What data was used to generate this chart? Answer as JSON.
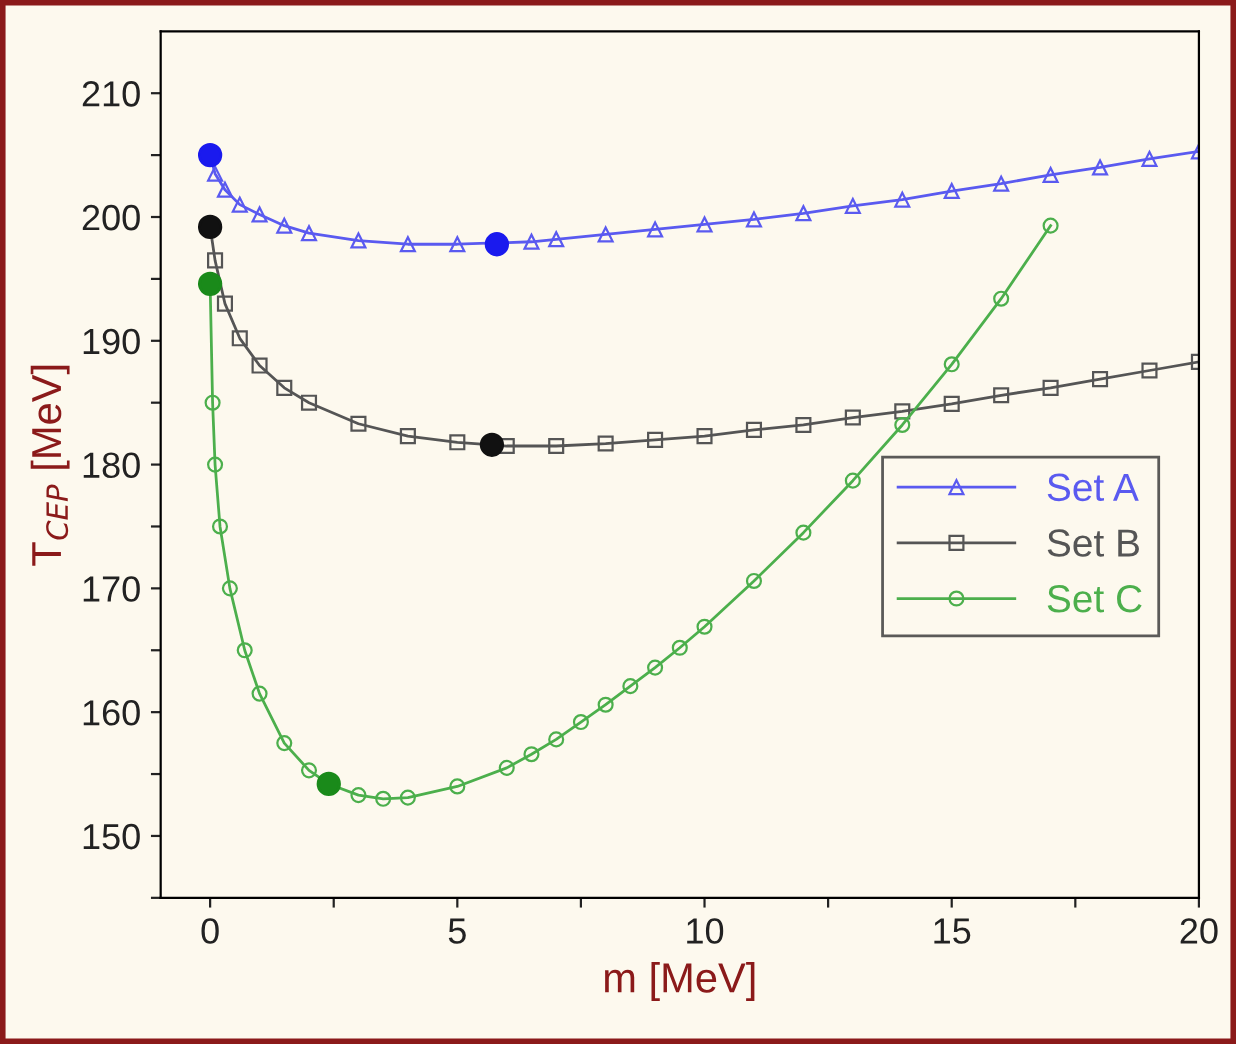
{
  "chart_data": {
    "type": "line",
    "xlabel": "m [MeV]",
    "ylabel": "T$_{CEP}$ [MeV]",
    "xlim": [
      -1,
      20
    ],
    "ylim": [
      145,
      215
    ],
    "xticks": [
      0,
      {
        "value": 2.5,
        "label": null
      },
      5,
      {
        "value": 7.5,
        "label": null
      },
      10,
      {
        "value": 12.5,
        "label": null
      },
      15,
      {
        "value": 17.5,
        "label": null
      },
      20
    ],
    "yticks": [
      {
        "value": 145,
        "label": null
      },
      150,
      {
        "value": 155,
        "label": null
      },
      160,
      {
        "value": 165,
        "label": null
      },
      170,
      {
        "value": 175,
        "label": null
      },
      180,
      {
        "value": 185,
        "label": null
      },
      190,
      {
        "value": 195,
        "label": null
      },
      200,
      {
        "value": 205,
        "label": null
      },
      210
    ],
    "grid": false,
    "legend": "lower right",
    "series": [
      {
        "name": "Set A",
        "color": "#5a5af0",
        "marker": "triangle",
        "x": [
          0,
          0.1,
          0.3,
          0.6,
          1,
          1.5,
          2,
          3,
          4,
          5,
          6.5,
          7,
          8,
          9,
          10,
          11,
          12,
          13,
          14,
          15,
          16,
          17,
          18,
          19,
          20
        ],
        "values": [
          205,
          203.5,
          202.2,
          201,
          200.2,
          199.3,
          198.7,
          198.1,
          197.8,
          197.8,
          198.0,
          198.2,
          198.6,
          199.0,
          199.4,
          199.8,
          200.3,
          200.9,
          201.4,
          202.1,
          202.7,
          203.4,
          204.0,
          204.7,
          205.3
        ]
      },
      {
        "name": "Set B",
        "color": "#555555",
        "marker": "square",
        "x": [
          0,
          0.1,
          0.3,
          0.6,
          1,
          1.5,
          2,
          3,
          4,
          5,
          5.7,
          6,
          7,
          8,
          9,
          10,
          11,
          12,
          13,
          14,
          15,
          16,
          17,
          18,
          19,
          20
        ],
        "values": [
          199.2,
          196.5,
          193,
          190.2,
          188,
          186.2,
          185,
          183.3,
          182.3,
          181.8,
          181.6,
          181.5,
          181.5,
          181.7,
          182,
          182.3,
          182.8,
          183.2,
          183.8,
          184.3,
          184.9,
          185.6,
          186.2,
          186.9,
          187.6,
          188.3
        ]
      },
      {
        "name": "Set C",
        "color": "#4caf4c",
        "marker": "circle",
        "x": [
          0,
          0.05,
          0.1,
          0.2,
          0.4,
          0.7,
          1,
          1.5,
          2,
          2.4,
          3,
          3.5,
          4,
          5,
          6,
          6.5,
          7,
          7.5,
          8,
          8.5,
          9,
          9.5,
          10,
          11,
          12,
          13,
          14,
          15,
          16,
          17
        ],
        "values": [
          194.6,
          185,
          180,
          175,
          170,
          165,
          161.5,
          157.5,
          155.3,
          154.2,
          153.3,
          153,
          153.1,
          154,
          155.5,
          156.6,
          157.8,
          159.2,
          160.6,
          162.1,
          163.6,
          165.2,
          166.9,
          170.6,
          174.5,
          178.7,
          183.2,
          188.1,
          193.4,
          199.3
        ]
      },
      {
        "type": "scatter",
        "color": "#1a1aee",
        "marker": "circle",
        "x": [
          0,
          5.8
        ],
        "values": [
          205,
          197.8
        ]
      },
      {
        "type": "scatter",
        "color": "#111111",
        "marker": "circle",
        "x": [
          0,
          5.7
        ],
        "values": [
          199.2,
          181.6
        ]
      },
      {
        "type": "scatter",
        "color": "#1a8a1a",
        "marker": "circle",
        "x": [
          0,
          2.4
        ],
        "values": [
          194.6,
          154.2
        ]
      }
    ]
  }
}
